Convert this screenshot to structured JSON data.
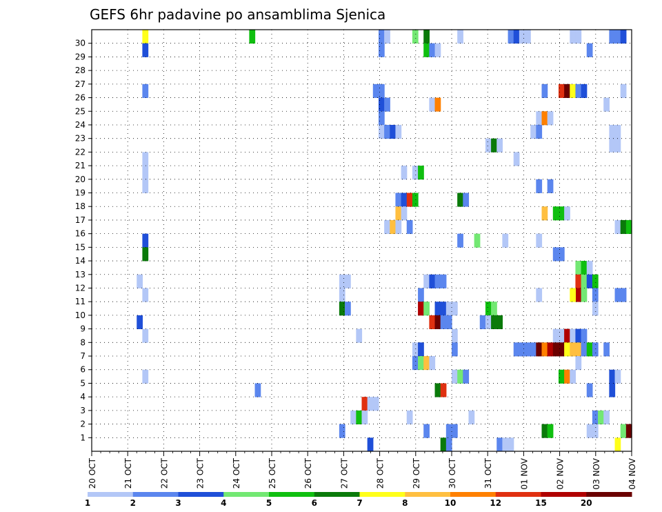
{
  "chart_data": {
    "type": "heatmap",
    "title": "GEFS 6hr padavine po ansamblima Sjenica",
    "xlabel": "",
    "ylabel": "",
    "y_ticks": [
      "1",
      "2",
      "3",
      "4",
      "5",
      "6",
      "7",
      "8",
      "9",
      "10",
      "11",
      "12",
      "13",
      "14",
      "15",
      "16",
      "17",
      "18",
      "19",
      "20",
      "21",
      "22",
      "23",
      "24",
      "25",
      "26",
      "27",
      "28",
      "29",
      "30"
    ],
    "x_ticks": [
      "20 OCT",
      "21 OCT",
      "22 OCT",
      "23 OCT",
      "24 OCT",
      "25 OCT",
      "26 OCT",
      "27 OCT",
      "28 OCT",
      "29 OCT",
      "30 OCT",
      "31 OCT",
      "01 NOV",
      "02 NOV",
      "03 NOV",
      "04 NOV"
    ],
    "grid": true,
    "x_range_days": [
      0,
      15
    ],
    "step_hours": 6,
    "colorbar": {
      "labels": [
        "1",
        "2",
        "3",
        "4",
        "5",
        "6",
        "7",
        "8",
        "10",
        "12",
        "15",
        "20"
      ],
      "colors": [
        "#b3c7f7",
        "#5b86ee",
        "#1f4fd8",
        "#73e873",
        "#0fbf0f",
        "#0a7a0a",
        "#ffff1a",
        "#ffbf40",
        "#ff8000",
        "#e03010",
        "#b00000",
        "#6b0000"
      ]
    },
    "cells": [
      {
        "member": 30,
        "step": [
          9,
          28,
          51,
          52,
          57,
          59,
          65,
          74,
          85,
          86,
          87,
          88,
          94,
          96,
          120,
          121
        ]
      },
      {
        "member": 29,
        "step": [
          9,
          51,
          57,
          59,
          60,
          61,
          62,
          91
        ]
      },
      {
        "member": 26,
        "step": [
          9,
          50,
          51,
          80,
          83,
          84,
          85,
          86,
          87,
          88,
          89,
          90,
          91,
          92
        ]
      },
      {
        "member": 25,
        "step": [
          50,
          51,
          52,
          60,
          61,
          92,
          93
        ]
      }
    ],
    "values": [
      {
        "m": 30,
        "s": [
          [
            9,
            7
          ],
          [
            28,
            5
          ],
          [
            51,
            2
          ],
          [
            52,
            1
          ],
          [
            57,
            4
          ],
          [
            59,
            6
          ],
          [
            65,
            1
          ],
          [
            74,
            2
          ],
          [
            75,
            3
          ],
          [
            76,
            1
          ],
          [
            77,
            1
          ],
          [
            85,
            1
          ],
          [
            86,
            1
          ],
          [
            92,
            2
          ],
          [
            93,
            2
          ],
          [
            94,
            3
          ]
        ]
      },
      {
        "m": 29,
        "s": [
          [
            9,
            3
          ],
          [
            51,
            2
          ],
          [
            59,
            5
          ],
          [
            60,
            2
          ],
          [
            61,
            1
          ],
          [
            88,
            2
          ]
        ]
      },
      {
        "m": 26,
        "s": [
          [
            9,
            2
          ],
          [
            50,
            2
          ],
          [
            51,
            2
          ],
          [
            80,
            2
          ],
          [
            83,
            12
          ],
          [
            84,
            20
          ],
          [
            85,
            7
          ],
          [
            86,
            2
          ],
          [
            87,
            3
          ],
          [
            94,
            1
          ]
        ]
      },
      {
        "m": 25,
        "s": [
          [
            51,
            3
          ],
          [
            52,
            2
          ],
          [
            60,
            1
          ],
          [
            61,
            10
          ],
          [
            91,
            1
          ]
        ]
      },
      {
        "m": 24,
        "s": [
          [
            51,
            2
          ],
          [
            79,
            1
          ],
          [
            80,
            10
          ],
          [
            81,
            1
          ]
        ]
      },
      {
        "m": 23,
        "s": [
          [
            51,
            1
          ],
          [
            52,
            2
          ],
          [
            53,
            3
          ],
          [
            54,
            1
          ],
          [
            78,
            1
          ],
          [
            79,
            2
          ],
          [
            92,
            1
          ],
          [
            93,
            1
          ]
        ]
      },
      {
        "m": 22,
        "s": [
          [
            70,
            1
          ],
          [
            71,
            6
          ],
          [
            72,
            1
          ],
          [
            92,
            1
          ],
          [
            93,
            1
          ]
        ]
      },
      {
        "m": 21,
        "s": [
          [
            9,
            1
          ],
          [
            75,
            1
          ]
        ]
      },
      {
        "m": 20,
        "s": [
          [
            9,
            1
          ],
          [
            55,
            1
          ],
          [
            57,
            1
          ],
          [
            58,
            5
          ]
        ]
      },
      {
        "m": 19,
        "s": [
          [
            9,
            1
          ],
          [
            79,
            2
          ],
          [
            81,
            2
          ]
        ]
      },
      {
        "m": 18,
        "s": [
          [
            54,
            2
          ],
          [
            55,
            3
          ],
          [
            56,
            12
          ],
          [
            57,
            5
          ],
          [
            65,
            6
          ],
          [
            66,
            2
          ]
        ]
      },
      {
        "m": 17,
        "s": [
          [
            54,
            8
          ],
          [
            55,
            1
          ],
          [
            80,
            8
          ],
          [
            82,
            5
          ],
          [
            83,
            5
          ],
          [
            84,
            1
          ]
        ]
      },
      {
        "m": 16,
        "s": [
          [
            52,
            1
          ],
          [
            53,
            8
          ],
          [
            54,
            1
          ],
          [
            56,
            2
          ],
          [
            93,
            1
          ],
          [
            94,
            6
          ],
          [
            95,
            5
          ]
        ]
      },
      {
        "m": 15,
        "s": [
          [
            9,
            3
          ],
          [
            65,
            2
          ],
          [
            68,
            4
          ],
          [
            73,
            1
          ],
          [
            79,
            1
          ]
        ]
      },
      {
        "m": 14,
        "s": [
          [
            9,
            6
          ],
          [
            82,
            2
          ],
          [
            83,
            2
          ]
        ]
      },
      {
        "m": 13,
        "s": [
          [
            86,
            4
          ],
          [
            87,
            5
          ],
          [
            88,
            1
          ]
        ]
      },
      {
        "m": 12,
        "s": [
          [
            8,
            1
          ],
          [
            44,
            1
          ],
          [
            45,
            1
          ],
          [
            59,
            1
          ],
          [
            60,
            3
          ],
          [
            61,
            2
          ],
          [
            62,
            2
          ],
          [
            86,
            12
          ],
          [
            87,
            4
          ],
          [
            88,
            3
          ],
          [
            89,
            5
          ]
        ]
      },
      {
        "m": 11,
        "s": [
          [
            9,
            1
          ],
          [
            44,
            1
          ],
          [
            58,
            2
          ],
          [
            79,
            1
          ],
          [
            86,
            15
          ],
          [
            85,
            7
          ],
          [
            87,
            4
          ],
          [
            89,
            2
          ],
          [
            93,
            2
          ],
          [
            94,
            2
          ]
        ]
      },
      {
        "m": 10,
        "s": [
          [
            44,
            6
          ],
          [
            45,
            2
          ],
          [
            58,
            15
          ],
          [
            59,
            4
          ],
          [
            61,
            3
          ],
          [
            62,
            3
          ],
          [
            63,
            1
          ],
          [
            64,
            1
          ],
          [
            70,
            5
          ],
          [
            71,
            4
          ],
          [
            89,
            1
          ]
        ]
      },
      {
        "m": 9,
        "s": [
          [
            8,
            3
          ],
          [
            60,
            12
          ],
          [
            61,
            20
          ],
          [
            62,
            2
          ],
          [
            63,
            2
          ],
          [
            69,
            2
          ],
          [
            70,
            1
          ],
          [
            71,
            6
          ],
          [
            72,
            6
          ]
        ]
      },
      {
        "m": 8,
        "s": [
          [
            9,
            1
          ],
          [
            47,
            1
          ],
          [
            64,
            1
          ],
          [
            82,
            1
          ],
          [
            83,
            1
          ],
          [
            84,
            15
          ],
          [
            85,
            1
          ],
          [
            86,
            3
          ],
          [
            87,
            2
          ]
        ]
      },
      {
        "m": 7,
        "s": [
          [
            57,
            1
          ],
          [
            58,
            3
          ],
          [
            64,
            2
          ],
          [
            75,
            2
          ],
          [
            76,
            2
          ],
          [
            77,
            2
          ],
          [
            78,
            2
          ],
          [
            79,
            20
          ],
          [
            80,
            10
          ],
          [
            81,
            15
          ],
          [
            82,
            20
          ],
          [
            83,
            20
          ],
          [
            84,
            7
          ],
          [
            85,
            8
          ],
          [
            86,
            8
          ],
          [
            87,
            2
          ],
          [
            88,
            5
          ],
          [
            89,
            2
          ],
          [
            91,
            2
          ]
        ]
      },
      {
        "m": 6,
        "s": [
          [
            57,
            2
          ],
          [
            58,
            4
          ],
          [
            59,
            8
          ],
          [
            60,
            1
          ],
          [
            86,
            1
          ]
        ]
      },
      {
        "m": 5,
        "s": [
          [
            9,
            1
          ],
          [
            64,
            1
          ],
          [
            65,
            4
          ],
          [
            66,
            2
          ],
          [
            83,
            5
          ],
          [
            84,
            10
          ],
          [
            85,
            1
          ],
          [
            92,
            3
          ],
          [
            93,
            1
          ]
        ]
      },
      {
        "m": 4,
        "s": [
          [
            29,
            2
          ],
          [
            61,
            6
          ],
          [
            62,
            12
          ],
          [
            88,
            2
          ],
          [
            92,
            3
          ]
        ]
      },
      {
        "m": 3,
        "s": [
          [
            48,
            12
          ],
          [
            49,
            1
          ],
          [
            50,
            1
          ]
        ]
      },
      {
        "m": 2,
        "s": [
          [
            46,
            1
          ],
          [
            47,
            5
          ],
          [
            48,
            1
          ],
          [
            56,
            1
          ],
          [
            67,
            1
          ],
          [
            89,
            2
          ],
          [
            90,
            4
          ],
          [
            91,
            1
          ]
        ]
      },
      {
        "m": 1,
        "s": [
          [
            44,
            2
          ],
          [
            59,
            2
          ],
          [
            63,
            2
          ],
          [
            64,
            2
          ],
          [
            80,
            6
          ],
          [
            81,
            5
          ],
          [
            88,
            1
          ],
          [
            89,
            1
          ],
          [
            94,
            4
          ],
          [
            95,
            20
          ]
        ]
      },
      {
        "m": 0,
        "s": [
          [
            49,
            3
          ],
          [
            62,
            6
          ],
          [
            63,
            2
          ],
          [
            72,
            2
          ],
          [
            73,
            1
          ],
          [
            74,
            1
          ],
          [
            93,
            7
          ]
        ]
      }
    ]
  }
}
